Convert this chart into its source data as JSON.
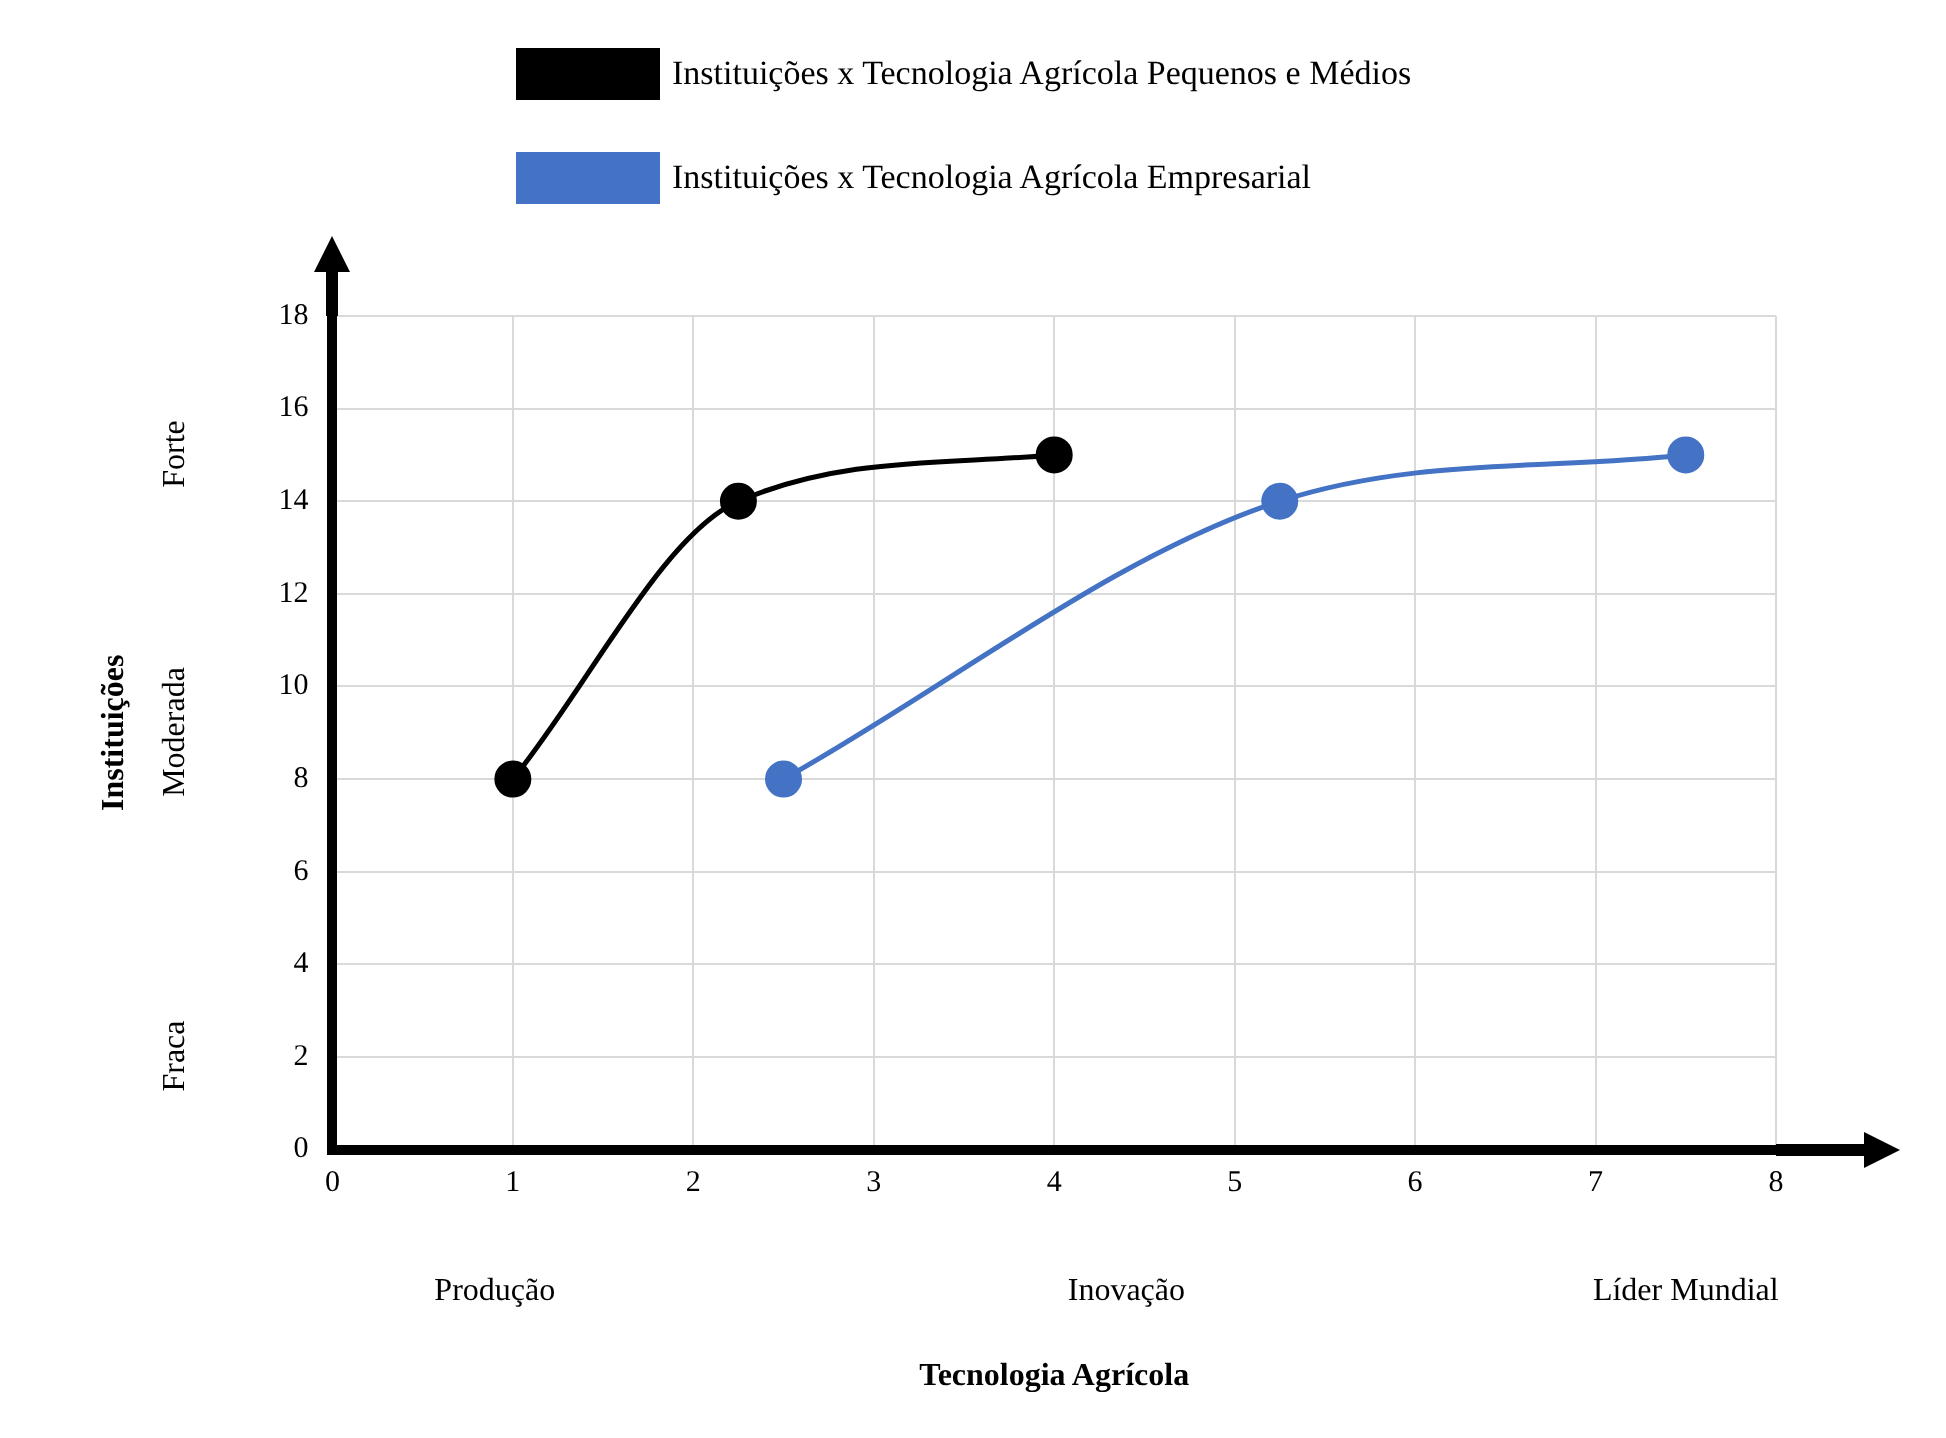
{
  "chart_data": {
    "type": "line",
    "xlabel": "Tecnologia Agrícola",
    "ylabel": "Instituições",
    "series": [
      {
        "name": "Instituições x Tecnologia Agrícola Pequenos e Médios",
        "color": "#000000",
        "x": [
          1,
          2.25,
          4
        ],
        "values": [
          8,
          14,
          15
        ]
      },
      {
        "name": "Instituições x Tecnologia Agrícola Empresarial",
        "color": "#4472c4",
        "x": [
          2.5,
          5.25,
          7.5
        ],
        "values": [
          8,
          14,
          15
        ]
      }
    ],
    "xlim": [
      0,
      8
    ],
    "xticks": [
      0,
      1,
      2,
      3,
      4,
      5,
      6,
      7,
      8
    ],
    "ylim": [
      0,
      18
    ],
    "yticks": [
      0,
      2,
      4,
      6,
      8,
      10,
      12,
      14,
      16,
      18
    ],
    "grid": true,
    "legend": "top",
    "marker": "circle",
    "line_style": "solid",
    "annotations": [
      "Forte",
      "Moderada",
      "Fraca",
      "Produção",
      "Inovação",
      "Líder Mundial"
    ]
  }
}
